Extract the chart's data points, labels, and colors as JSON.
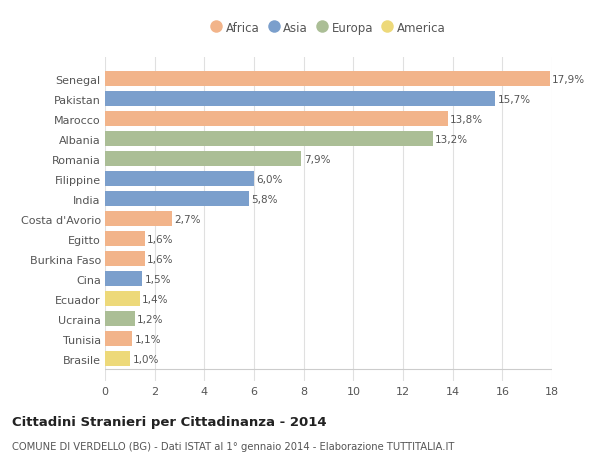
{
  "countries": [
    "Senegal",
    "Pakistan",
    "Marocco",
    "Albania",
    "Romania",
    "Filippine",
    "India",
    "Costa d'Avorio",
    "Egitto",
    "Burkina Faso",
    "Cina",
    "Ecuador",
    "Ucraina",
    "Tunisia",
    "Brasile"
  ],
  "values": [
    17.9,
    15.7,
    13.8,
    13.2,
    7.9,
    6.0,
    5.8,
    2.7,
    1.6,
    1.6,
    1.5,
    1.4,
    1.2,
    1.1,
    1.0
  ],
  "continents": [
    "Africa",
    "Asia",
    "Africa",
    "Europa",
    "Europa",
    "Asia",
    "Asia",
    "Africa",
    "Africa",
    "Africa",
    "Asia",
    "America",
    "Europa",
    "Africa",
    "America"
  ],
  "colors": {
    "Africa": "#F2B48A",
    "Asia": "#7B9FCC",
    "Europa": "#ABBE96",
    "America": "#EDD97A"
  },
  "legend_order": [
    "Africa",
    "Asia",
    "Europa",
    "America"
  ],
  "xlim": [
    0,
    18
  ],
  "xticks": [
    0,
    2,
    4,
    6,
    8,
    10,
    12,
    14,
    16,
    18
  ],
  "title": "Cittadini Stranieri per Cittadinanza - 2014",
  "subtitle": "COMUNE DI VERDELLO (BG) - Dati ISTAT al 1° gennaio 2014 - Elaborazione TUTTITALIA.IT",
  "background_color": "#ffffff",
  "grid_color": "#e0e0e0",
  "bar_height": 0.75
}
